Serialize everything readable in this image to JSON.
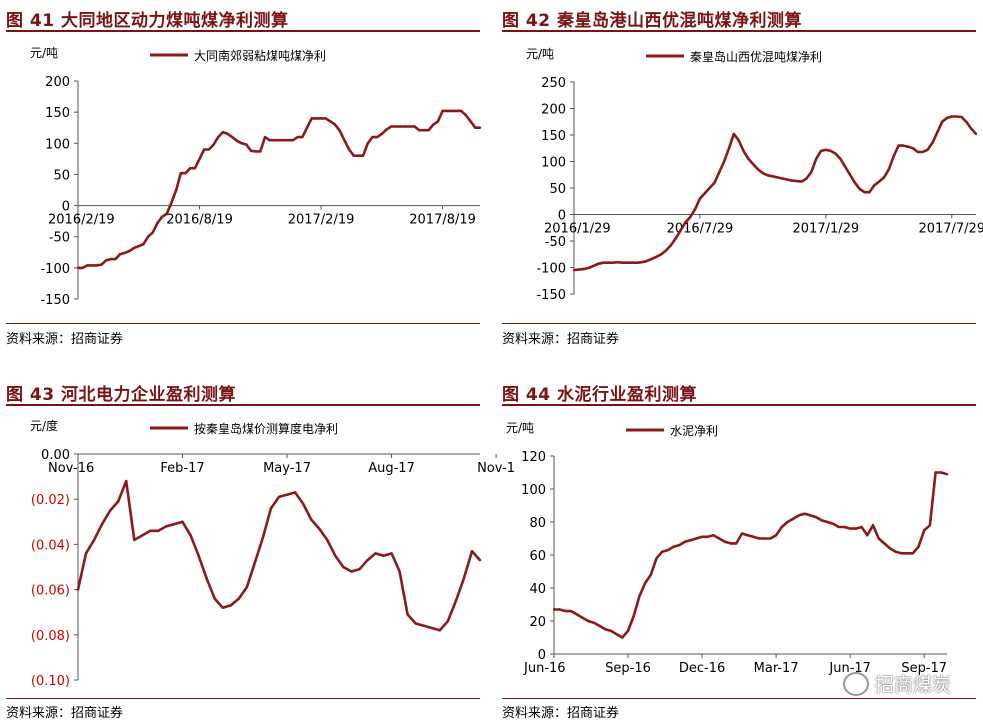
{
  "panels": [
    {
      "title": "图 41 大同地区动力煤吨煤净利测算",
      "source": "资料来源：招商证券"
    },
    {
      "title": "图 42 秦皇岛港山西优混吨煤净利测算",
      "source": "资料来源：招商证券"
    },
    {
      "title": "图 43 河北电力企业盈利测算",
      "source": "资料来源：招商证券"
    },
    {
      "title": "图 44 水泥行业盈利测算",
      "source": "资料来源：招商证券"
    }
  ],
  "colors": {
    "title": "#7a1414",
    "series": "#8b1a1a",
    "negative_tick": "#d40000"
  },
  "watermark": {
    "text": "招商煤炭",
    "icon": "wechat-icon"
  },
  "chart_data": [
    {
      "type": "line",
      "ylabel": "元/吨",
      "ylim": [
        -150,
        200
      ],
      "yticks": [
        "200",
        "150",
        "100",
        "50",
        "0",
        "-50",
        "-100",
        "-150"
      ],
      "ytick_values": [
        200,
        150,
        100,
        50,
        0,
        -50,
        -100,
        -150
      ],
      "xtick_labels": [
        "2016/2/19",
        "2016/8/19",
        "2017/2/19",
        "2017/8/19"
      ],
      "xtick_index": [
        0,
        26,
        52,
        78
      ],
      "series": [
        {
          "name": "大同南郊弱粘煤吨煤净利",
          "values": [
            -100,
            -100,
            -96,
            -96,
            -96,
            -95,
            -88,
            -86,
            -86,
            -78,
            -76,
            -73,
            -68,
            -65,
            -62,
            -50,
            -43,
            -28,
            -18,
            -13,
            5,
            25,
            52,
            52,
            60,
            60,
            75,
            90,
            90,
            98,
            110,
            118,
            115,
            110,
            104,
            100,
            98,
            88,
            87,
            87,
            110,
            105,
            105,
            105,
            105,
            105,
            105,
            110,
            110,
            125,
            140,
            140,
            140,
            140,
            135,
            130,
            120,
            105,
            90,
            80,
            80,
            80,
            100,
            110,
            110,
            115,
            122,
            127,
            127,
            127,
            127,
            127,
            127,
            121,
            121,
            121,
            130,
            135,
            152,
            152,
            152,
            152,
            152,
            145,
            135,
            125,
            125
          ]
        }
      ],
      "legend": "top"
    },
    {
      "type": "line",
      "ylabel": "元/吨",
      "ylim": [
        -150,
        250
      ],
      "yticks": [
        "250",
        "200",
        "150",
        "100",
        "50",
        "0",
        "-50",
        "-100",
        "-150"
      ],
      "ytick_values": [
        250,
        200,
        150,
        100,
        50,
        0,
        -50,
        -100,
        -150
      ],
      "xtick_labels": [
        "2016/1/29",
        "2016/7/29",
        "2017/1/29",
        "2017/7/29"
      ],
      "xtick_index": [
        0,
        26,
        52,
        78
      ],
      "series": [
        {
          "name": "秦皇岛山西优混吨煤净利",
          "values": [
            -105,
            -104,
            -103,
            -101,
            -97,
            -93,
            -91,
            -91,
            -91,
            -90,
            -91,
            -91,
            -91,
            -91,
            -90,
            -88,
            -84,
            -80,
            -75,
            -68,
            -58,
            -45,
            -30,
            -15,
            -5,
            10,
            30,
            40,
            50,
            60,
            80,
            100,
            125,
            152,
            140,
            120,
            105,
            95,
            85,
            78,
            74,
            72,
            70,
            68,
            66,
            64,
            63,
            62,
            68,
            80,
            105,
            120,
            122,
            120,
            115,
            105,
            90,
            75,
            60,
            48,
            42,
            42,
            55,
            62,
            70,
            85,
            110,
            130,
            130,
            128,
            125,
            118,
            118,
            122,
            135,
            155,
            175,
            182,
            185,
            185,
            184,
            175,
            162,
            152
          ]
        }
      ],
      "legend": "top"
    },
    {
      "type": "line",
      "ylabel": "元/度",
      "ylim": [
        -0.1,
        0
      ],
      "yticks": [
        "0.00",
        "(0.02)",
        "(0.04)",
        "(0.06)",
        "(0.08)",
        "(0.10)"
      ],
      "ytick_values": [
        0,
        -0.02,
        -0.04,
        -0.06,
        -0.08,
        -0.1
      ],
      "xtick_labels": [
        "Nov-16",
        "Feb-17",
        "May-17",
        "Aug-17",
        "Nov-1"
      ],
      "xtick_index": [
        0,
        13,
        26,
        39,
        52
      ],
      "series": [
        {
          "name": "按秦皇岛煤价测算度电净利",
          "values": [
            -0.06,
            -0.044,
            -0.038,
            -0.031,
            -0.025,
            -0.021,
            -0.012,
            -0.038,
            -0.036,
            -0.034,
            -0.034,
            -0.032,
            -0.031,
            -0.03,
            -0.036,
            -0.045,
            -0.055,
            -0.064,
            -0.068,
            -0.067,
            -0.064,
            -0.059,
            -0.048,
            -0.037,
            -0.024,
            -0.019,
            -0.018,
            -0.017,
            -0.022,
            -0.029,
            -0.033,
            -0.038,
            -0.045,
            -0.05,
            -0.052,
            -0.051,
            -0.047,
            -0.044,
            -0.045,
            -0.044,
            -0.052,
            -0.071,
            -0.075,
            -0.076,
            -0.077,
            -0.078,
            -0.074,
            -0.065,
            -0.055,
            -0.043,
            -0.047
          ]
        }
      ],
      "legend": "top"
    },
    {
      "type": "line",
      "ylabel": "元/吨",
      "ylim": [
        0,
        120
      ],
      "yticks": [
        "120",
        "100",
        "80",
        "60",
        "40",
        "20",
        "0"
      ],
      "ytick_values": [
        120,
        100,
        80,
        60,
        40,
        20,
        0
      ],
      "xtick_labels": [
        "Jun-16",
        "Sep-16",
        "Dec-16",
        "Mar-17",
        "Jun-17",
        "Sep-17"
      ],
      "xtick_index": [
        0,
        13,
        26,
        39,
        52,
        65
      ],
      "series": [
        {
          "name": "水泥净利",
          "values": [
            27,
            27,
            26,
            26,
            24,
            22,
            20,
            19,
            17,
            15,
            14,
            12,
            10,
            14,
            23,
            35,
            43,
            48,
            58,
            62,
            63,
            65,
            66,
            68,
            69,
            70,
            71,
            71,
            72,
            70,
            68,
            67,
            67,
            73,
            72,
            71,
            70,
            70,
            70,
            72,
            77,
            80,
            82,
            84,
            85,
            84,
            83,
            81,
            80,
            79,
            77,
            77,
            76,
            76,
            77,
            72,
            78,
            70,
            67,
            64,
            62,
            61,
            61,
            61,
            65,
            75,
            78,
            110,
            110,
            109
          ]
        }
      ],
      "legend": "top"
    }
  ]
}
